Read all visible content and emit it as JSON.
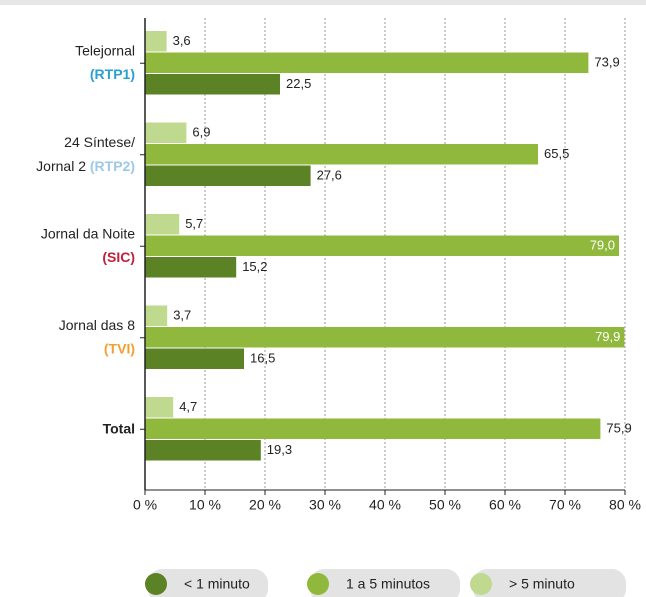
{
  "chart_data": {
    "type": "hbar",
    "categories": [
      {
        "lines": [
          "Telejornal"
        ],
        "channel": "(RTP1)",
        "channel_color": "#2a9fd0"
      },
      {
        "lines": [
          "24 Síntese/",
          "Jornal 2"
        ],
        "channel": "(RTP2)",
        "channel_color": "#9cc9e6"
      },
      {
        "lines": [
          "Jornal da Noite"
        ],
        "channel": "(SIC)",
        "channel_color": "#c0213a"
      },
      {
        "lines": [
          "Jornal das 8"
        ],
        "channel": "(TVI)",
        "channel_color": "#f0a030"
      },
      {
        "lines": [
          "Total"
        ],
        "bold": true
      }
    ],
    "series": [
      {
        "name": "< 1 minuto",
        "color": "#5c8226",
        "values": [
          22.5,
          27.6,
          15.2,
          16.5,
          19.3
        ],
        "value_labels": [
          "22,5",
          "27,6",
          "15,2",
          "16,5",
          "19,3"
        ]
      },
      {
        "name": "1 a 5 minutos",
        "color": "#8fb83c",
        "values": [
          73.9,
          65.5,
          79.0,
          79.9,
          75.9
        ],
        "value_labels": [
          "73,9",
          "65,5",
          "79,0",
          "79,9",
          "75,9"
        ]
      },
      {
        "name": "> 5 minuto",
        "color": "#bfd98e",
        "values": [
          3.6,
          6.9,
          5.7,
          3.7,
          4.7
        ],
        "value_labels": [
          "3,6",
          "6,9",
          "5,7",
          "3,7",
          "4,7"
        ]
      }
    ],
    "xlim": [
      0,
      80
    ],
    "xticks": [
      {
        "value": 0,
        "label": "0 %"
      },
      {
        "value": 10,
        "label": "10 %"
      },
      {
        "value": 20,
        "label": "20 %"
      },
      {
        "value": 30,
        "label": "30 %"
      },
      {
        "value": 40,
        "label": "40 %"
      },
      {
        "value": 50,
        "label": "50 %"
      },
      {
        "value": 60,
        "label": "60 %"
      },
      {
        "value": 70,
        "label": "70 %"
      },
      {
        "value": 80,
        "label": "80 %"
      }
    ],
    "grid": true
  }
}
